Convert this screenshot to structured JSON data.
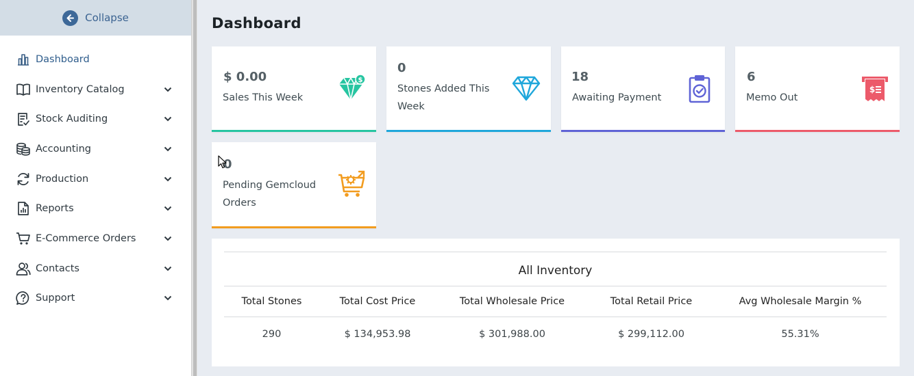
{
  "sidebar": {
    "collapse_label": "Collapse",
    "items": [
      {
        "label": "Dashboard",
        "icon": "bar-chart-icon",
        "active": true
      },
      {
        "label": "Inventory Catalog",
        "icon": "book-icon"
      },
      {
        "label": "Stock Auditing",
        "icon": "clipboard-check-icon"
      },
      {
        "label": "Accounting",
        "icon": "coins-icon"
      },
      {
        "label": "Production",
        "icon": "refresh-icon"
      },
      {
        "label": "Reports",
        "icon": "report-icon"
      },
      {
        "label": "E-Commerce Orders",
        "icon": "cart-icon"
      },
      {
        "label": "Contacts",
        "icon": "people-icon"
      },
      {
        "label": "Support",
        "icon": "help-chat-icon"
      }
    ]
  },
  "page": {
    "title": "Dashboard"
  },
  "cards": [
    {
      "value": "$ 0.00",
      "caption": "Sales This Week",
      "icon": "gem-dollar-icon",
      "color": "#26c5a1"
    },
    {
      "value": "0",
      "caption": "Stones Added This Week",
      "icon": "diamond-icon",
      "color": "#1fa7db"
    },
    {
      "value": "18",
      "caption": "Awaiting Payment",
      "icon": "clipboard-check-icon",
      "color": "#5f63d6"
    },
    {
      "value": "6",
      "caption": "Memo Out",
      "icon": "receipt-icon",
      "color": "#ec5a6a"
    },
    {
      "value": "0",
      "caption": "Pending Gemcloud Orders",
      "icon": "cart-gear-icon",
      "color": "#f29c1f"
    }
  ],
  "inventory": {
    "title": "All Inventory",
    "headers": [
      "Total Stones",
      "Total Cost Price",
      "Total Wholesale Price",
      "Total Retail Price",
      "Avg Wholesale Margin %"
    ],
    "values": [
      "290",
      "$ 134,953.98",
      "$ 301,988.00",
      "$ 299,112.00",
      "55.31%"
    ]
  }
}
